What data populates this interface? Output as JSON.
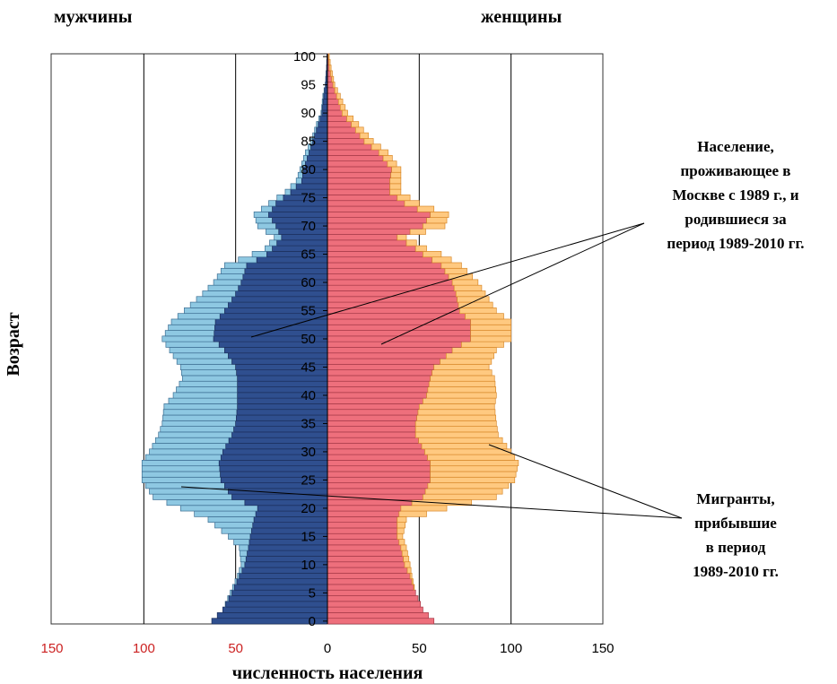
{
  "header": {
    "men_label": "мужчины",
    "women_label": "женщины"
  },
  "annotations": {
    "residents": "Население,\nпроживающее в\nМоскве с 1989 г., и\nродившиеся за\nпериод 1989-2010 гг.",
    "migrants": "Мигранты,\nприбывшие\nв период\n1989-2010 гг."
  },
  "chart_data": {
    "type": "bar",
    "orientation": "horizontal-pyramid",
    "ylabel": "Возраст",
    "xlabel": "численность населения",
    "x_ticks": [
      "150",
      "100",
      "50",
      "0",
      "50",
      "100",
      "150"
    ],
    "y_ticks": [
      "0",
      "5",
      "10",
      "15",
      "20",
      "25",
      "30",
      "35",
      "40",
      "45",
      "50",
      "55",
      "60",
      "65",
      "70",
      "75",
      "80",
      "85",
      "90",
      "95",
      "100"
    ],
    "xlim": [
      -150,
      150
    ],
    "ylim": [
      0,
      100
    ],
    "grid": "vertical lines at 50 and 100 on both sides",
    "colors": {
      "men_resident": "#2F4F8F",
      "men_migrant": "#8EC8E2",
      "women_resident": "#EE6F7C",
      "women_migrant": "#FFC980",
      "left_tick_labels": "#CC2222"
    },
    "age_knots": [
      0,
      2,
      5,
      8,
      10,
      13,
      15,
      18,
      20,
      22,
      25,
      28,
      30,
      33,
      35,
      38,
      40,
      43,
      45,
      48,
      50,
      53,
      55,
      58,
      60,
      63,
      65,
      66,
      68,
      70,
      72,
      74,
      76,
      78,
      80,
      83,
      85,
      88,
      90,
      93,
      95,
      98,
      100
    ],
    "series": [
      {
        "name": "Население, проживающее в Москве с 1989 г., и родившиеся за период 1989-2010 гг. (мужчины)",
        "side": "left",
        "values": [
          63,
          57,
          52,
          48,
          45,
          43,
          42,
          40,
          38,
          52,
          58,
          59,
          57,
          52,
          50,
          49,
          49,
          49,
          50,
          56,
          62,
          61,
          56,
          50,
          47,
          44,
          33,
          30,
          25,
          28,
          32,
          28,
          20,
          14,
          13,
          10,
          8,
          5,
          3,
          2,
          1,
          0.5,
          0.3
        ]
      },
      {
        "name": "Мигранты, прибывшие в период 1989-2010 гг. (мужчины)",
        "side": "left",
        "values": [
          0,
          0,
          1,
          1,
          2,
          5,
          12,
          25,
          42,
          43,
          43,
          42,
          40,
          40,
          40,
          40,
          35,
          30,
          30,
          30,
          28,
          24,
          22,
          18,
          15,
          12,
          8,
          4,
          4,
          10,
          8,
          4,
          3,
          3,
          2,
          2,
          1,
          1,
          0.5,
          0.5,
          0.2,
          0,
          0
        ]
      },
      {
        "name": "Население, проживающее в Москве с 1989 г., и родившиеся за период 1989-2010 гг. (женщины)",
        "side": "right",
        "values": [
          58,
          52,
          48,
          45,
          42,
          40,
          38,
          38,
          40,
          52,
          56,
          56,
          53,
          48,
          48,
          50,
          54,
          56,
          58,
          68,
          78,
          78,
          72,
          70,
          68,
          62,
          52,
          48,
          38,
          52,
          56,
          42,
          34,
          34,
          35,
          28,
          20,
          13,
          8,
          5,
          3,
          1,
          0.5
        ]
      },
      {
        "name": "Мигранты, прибывшие в период 1989-2010 гг. (женщины)",
        "side": "right",
        "values": [
          0,
          0,
          0,
          1,
          3,
          3,
          3,
          5,
          25,
          40,
          46,
          48,
          47,
          45,
          44,
          41,
          38,
          35,
          30,
          24,
          22,
          22,
          20,
          16,
          14,
          11,
          10,
          6,
          5,
          12,
          10,
          8,
          6,
          6,
          5,
          5,
          5,
          4,
          3,
          2,
          1,
          1,
          0.5
        ]
      }
    ]
  }
}
